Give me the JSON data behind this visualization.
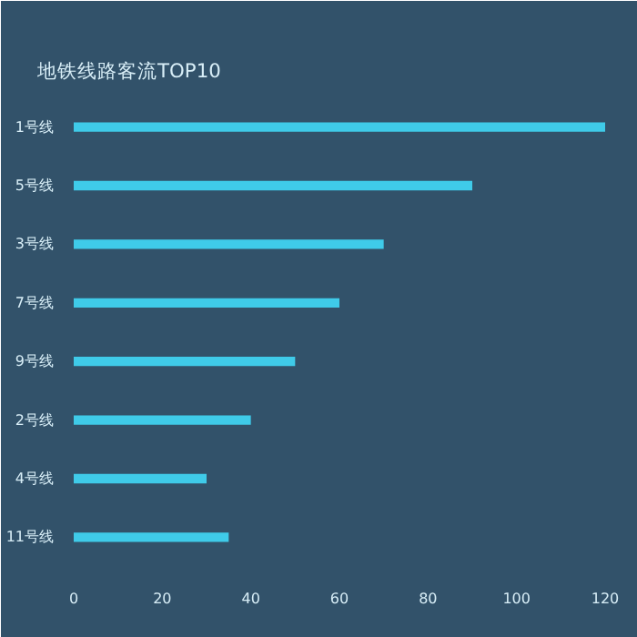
{
  "chart_data": {
    "type": "bar",
    "orientation": "horizontal",
    "title": "地铁线路客流TOP10",
    "categories": [
      "1号线",
      "5号线",
      "3号线",
      "7号线",
      "9号线",
      "2号线",
      "4号线",
      "11号线"
    ],
    "values": [
      120,
      90,
      70,
      60,
      50,
      40,
      30,
      35
    ],
    "color": "#3fcbe9",
    "xlim": [
      0,
      120
    ],
    "xticks": [
      0,
      20,
      40,
      60,
      80,
      100,
      120
    ],
    "grid": false
  }
}
